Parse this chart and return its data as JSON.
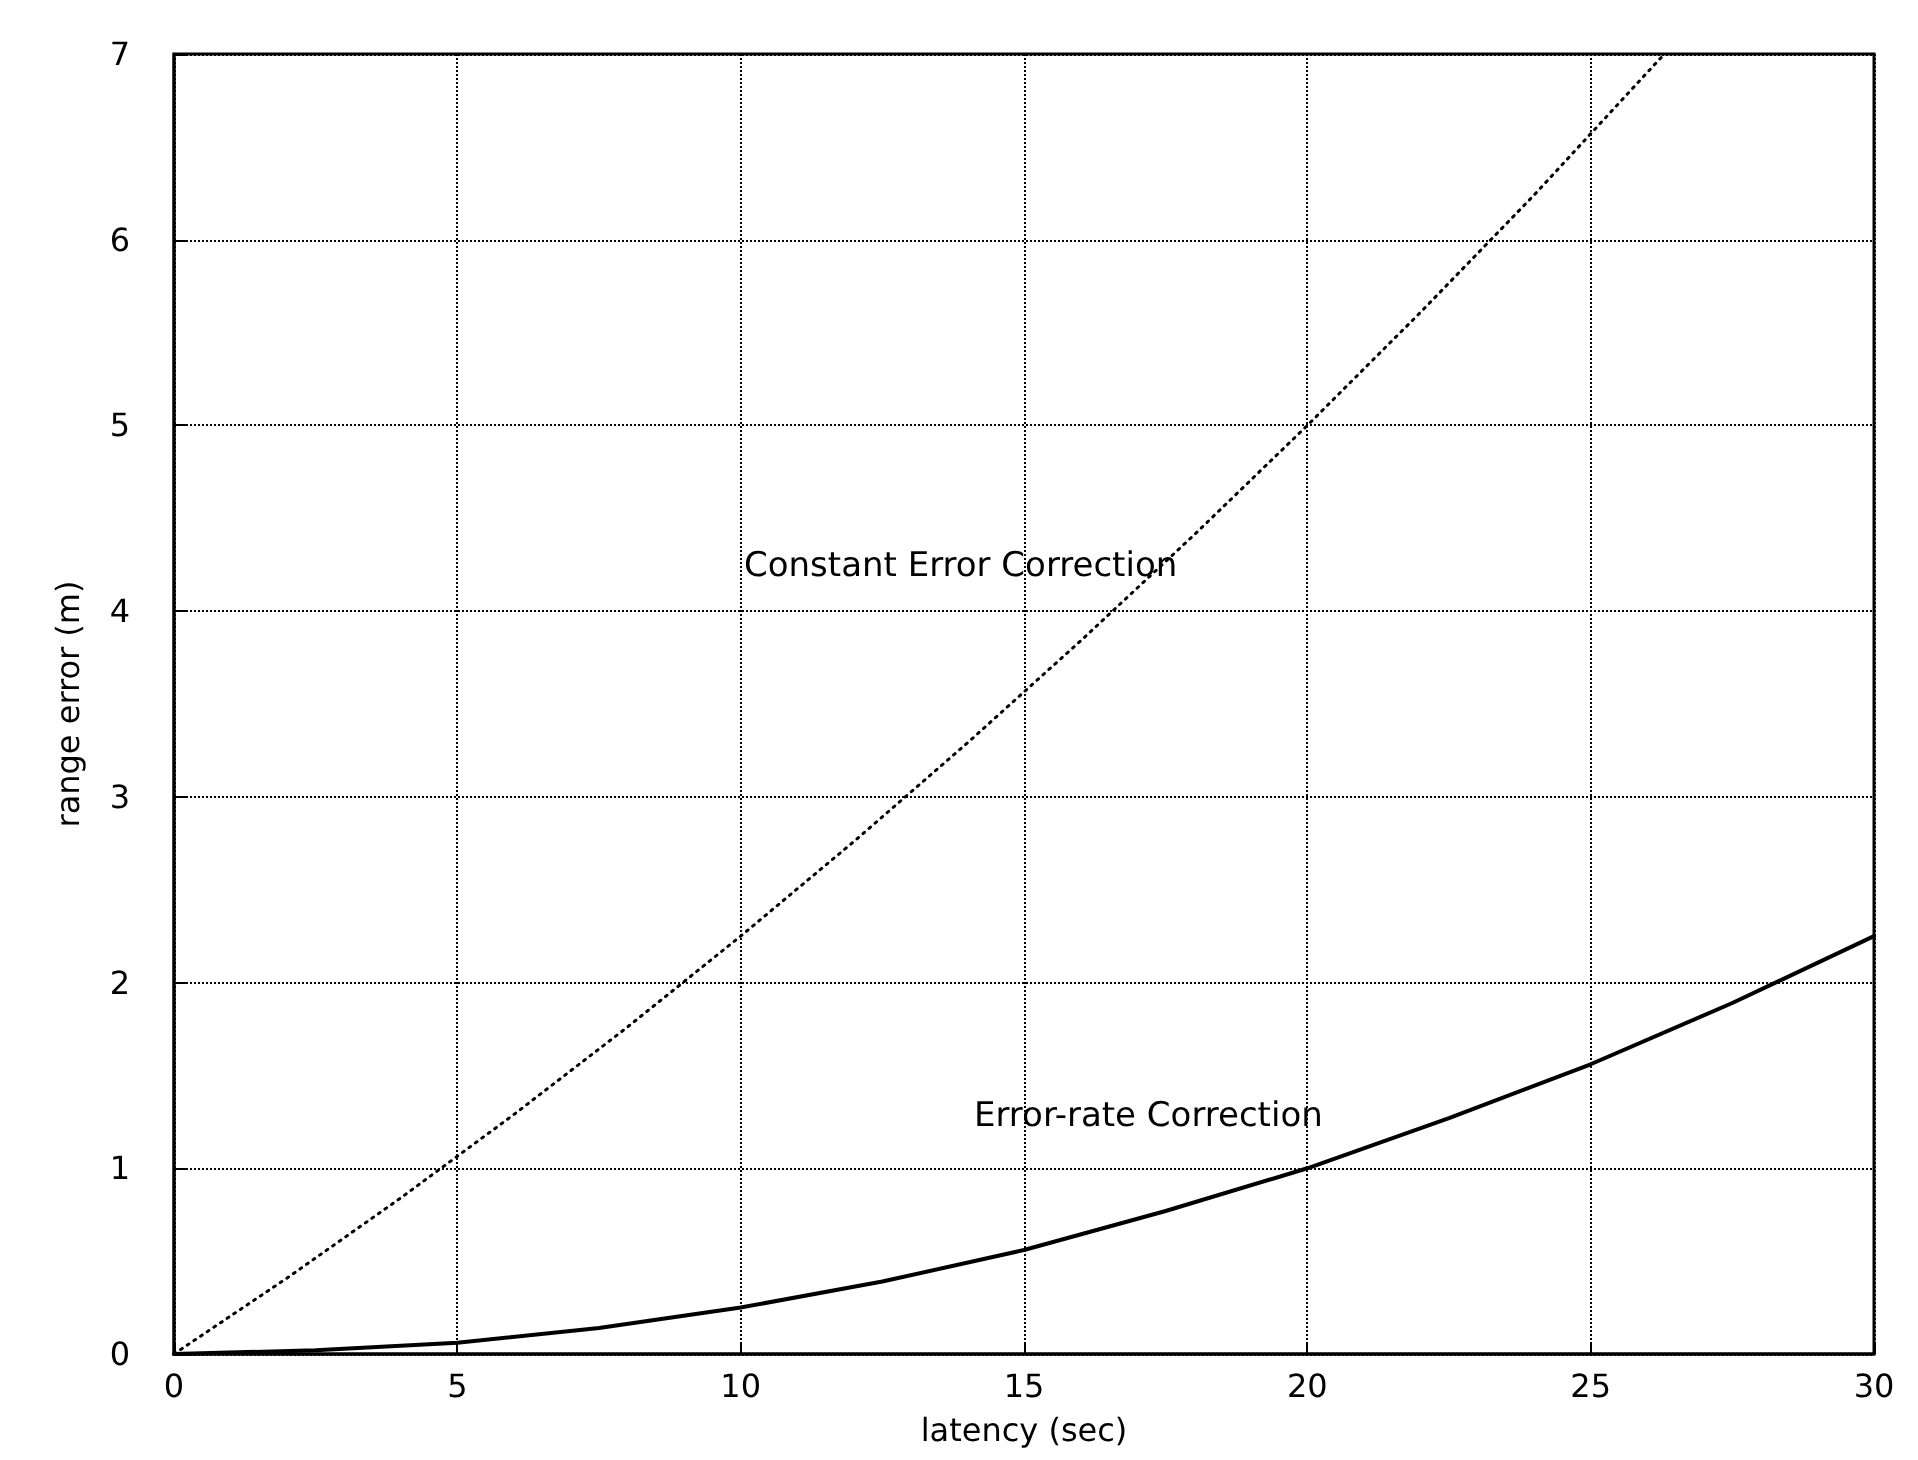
{
  "chart_data": {
    "type": "line",
    "xlabel": "latency (sec)",
    "ylabel": "range error (m)",
    "xlim": [
      0,
      30
    ],
    "ylim": [
      0,
      7
    ],
    "xticks": [
      0,
      5,
      10,
      15,
      20,
      25,
      30
    ],
    "yticks": [
      0,
      1,
      2,
      3,
      4,
      5,
      6,
      7
    ],
    "grid": true,
    "marker": "none",
    "series": [
      {
        "name": "Constant Error Correction",
        "color": "#000000",
        "line_style": "dotted",
        "x": [
          0,
          2,
          4,
          6,
          8,
          10,
          12,
          14,
          16,
          18,
          20,
          22,
          24,
          26.3
        ],
        "values": [
          0,
          0.41,
          0.84,
          1.29,
          1.76,
          2.25,
          2.76,
          3.29,
          3.84,
          4.41,
          5.0,
          5.61,
          6.24,
          7.0
        ]
      },
      {
        "name": "Error-rate Correction",
        "color": "#000000",
        "line_style": "solid",
        "x": [
          0,
          2.5,
          5,
          7.5,
          10,
          12.5,
          15,
          17.5,
          20,
          22.5,
          25,
          27.5,
          30
        ],
        "values": [
          0,
          0.02,
          0.06,
          0.14,
          0.25,
          0.39,
          0.56,
          0.77,
          1.0,
          1.27,
          1.56,
          1.89,
          2.25
        ]
      }
    ]
  }
}
